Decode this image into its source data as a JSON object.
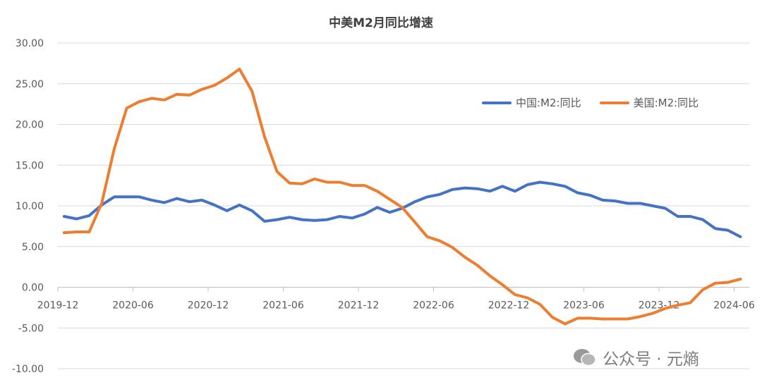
{
  "chart_data": {
    "type": "line",
    "title": "中美M2月同比增速",
    "xlabel": "",
    "ylabel": "",
    "ylim": [
      -10,
      30
    ],
    "yticks": [
      "30.00",
      "25.00",
      "20.00",
      "15.00",
      "10.00",
      "5.00",
      "0.00",
      "-5.00",
      "-10.00"
    ],
    "ytick_values": [
      30,
      25,
      20,
      15,
      10,
      5,
      0,
      -5,
      -10
    ],
    "xtick_labels": [
      "2019-12",
      "2020-06",
      "2020-12",
      "2021-06",
      "2021-12",
      "2022-06",
      "2022-12",
      "2023-06",
      "2023-12",
      "2024-06"
    ],
    "x_start": "2019-12",
    "grid": true,
    "legend_position": "top-right",
    "series": [
      {
        "name": "中国:M2:同比",
        "color": "#4472C4",
        "values": [
          8.7,
          8.4,
          8.8,
          10.1,
          11.1,
          11.1,
          11.1,
          10.7,
          10.4,
          10.9,
          10.5,
          10.7,
          10.1,
          9.4,
          10.1,
          9.4,
          8.1,
          8.3,
          8.6,
          8.3,
          8.2,
          8.3,
          8.7,
          8.5,
          9.0,
          9.8,
          9.2,
          9.7,
          10.5,
          11.1,
          11.4,
          12.0,
          12.2,
          12.1,
          11.8,
          12.4,
          11.8,
          12.6,
          12.9,
          12.7,
          12.4,
          11.6,
          11.3,
          10.7,
          10.6,
          10.3,
          10.3,
          10.0,
          9.7,
          8.7,
          8.7,
          8.3,
          7.2,
          7.0,
          6.2
        ]
      },
      {
        "name": "美国:M2:同比",
        "color": "#ED7D31",
        "values": [
          6.7,
          6.8,
          6.8,
          10.3,
          17.0,
          22.0,
          22.8,
          23.2,
          23.0,
          23.7,
          23.6,
          24.3,
          24.8,
          25.7,
          26.8,
          24.1,
          18.5,
          14.2,
          12.8,
          12.7,
          13.3,
          12.9,
          12.9,
          12.5,
          12.5,
          11.8,
          10.8,
          9.8,
          8.0,
          6.2,
          5.7,
          4.9,
          3.7,
          2.7,
          1.4,
          0.3,
          -0.9,
          -1.3,
          -2.1,
          -3.7,
          -4.5,
          -3.8,
          -3.8,
          -3.9,
          -3.9,
          -3.9,
          -3.6,
          -3.2,
          -2.6,
          -2.2,
          -1.9,
          -0.3,
          0.5,
          0.6,
          1.0
        ]
      }
    ]
  },
  "watermark": "公众号 · 元熵"
}
